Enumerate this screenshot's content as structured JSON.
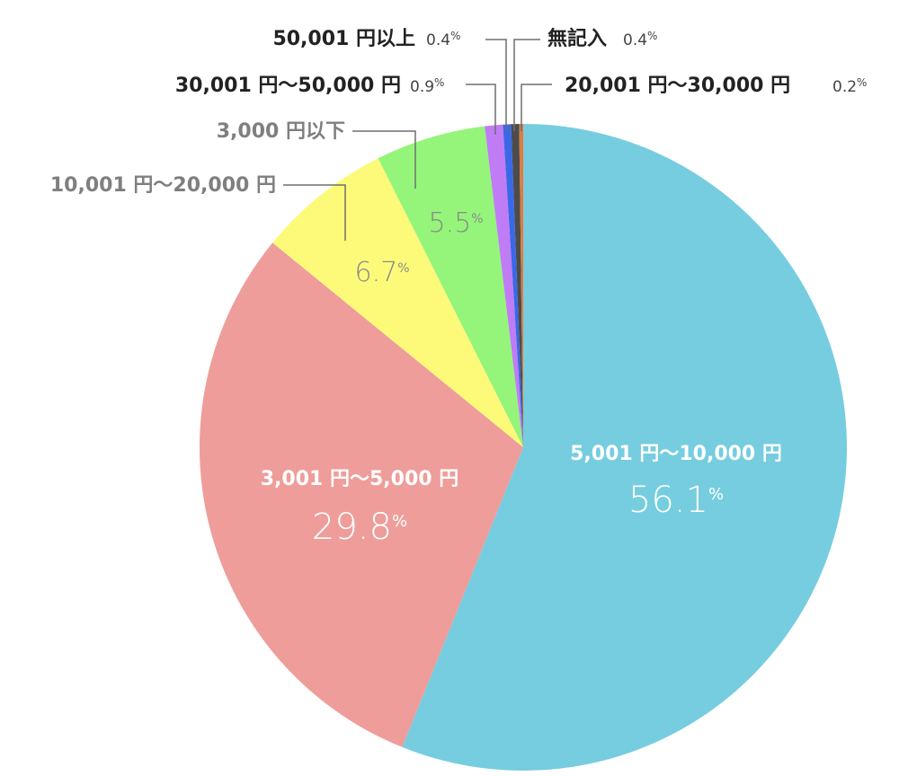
{
  "chart_data": {
    "type": "pie",
    "slices": [
      {
        "label": "5,001 円〜10,000 円",
        "value": 56.1,
        "display": "56.1",
        "color": "#76cddf"
      },
      {
        "label": "3,001 円〜5,000 円",
        "value": 29.8,
        "display": "29.8",
        "color": "#ee9d9a"
      },
      {
        "label": "10,001 円〜20,000 円",
        "value": 6.7,
        "display": "6.7",
        "color": "#fdfa7a"
      },
      {
        "label": "3,000 円以下",
        "value": 5.5,
        "display": "5.5",
        "color": "#94f57a"
      },
      {
        "label": "30,001 円〜50,000 円",
        "value": 0.9,
        "display": "0.9",
        "color": "#c07cf5"
      },
      {
        "label": "50,001 円以上",
        "value": 0.4,
        "display": "0.4",
        "color": "#3a69e8"
      },
      {
        "label": "無記入",
        "value": 0.4,
        "display": "0.4",
        "color": "#4c4c4c"
      },
      {
        "label": "20,001 円〜30,000 円",
        "value": 0.2,
        "display": "0.2",
        "color": "#e07b3e"
      }
    ],
    "percent_sign": "%"
  }
}
